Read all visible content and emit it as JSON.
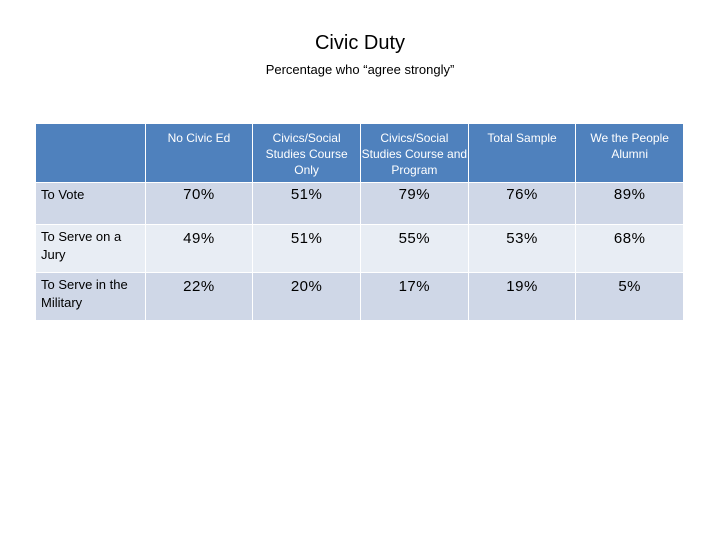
{
  "title": "Civic Duty",
  "subtitle": "Percentage who “agree strongly”",
  "table": {
    "headers": [
      "",
      "No Civic Ed",
      "Civics/Social Studies Course Only",
      "Civics/Social Studies Course and Program",
      "Total Sample",
      "We the People Alumni"
    ],
    "rows": [
      {
        "label": "To Vote",
        "values": [
          "70%",
          "51%",
          "79%",
          "76%",
          "89%"
        ]
      },
      {
        "label": "To Serve on a Jury",
        "values": [
          "49%",
          "51%",
          "55%",
          "53%",
          "68%"
        ]
      },
      {
        "label": "To Serve in the Military",
        "values": [
          "22%",
          "20%",
          "17%",
          "19%",
          "5%"
        ]
      }
    ]
  },
  "colors": {
    "header_bg": "#4f81bd",
    "row_dark": "#cfd7e7",
    "row_light": "#e8edf4"
  }
}
